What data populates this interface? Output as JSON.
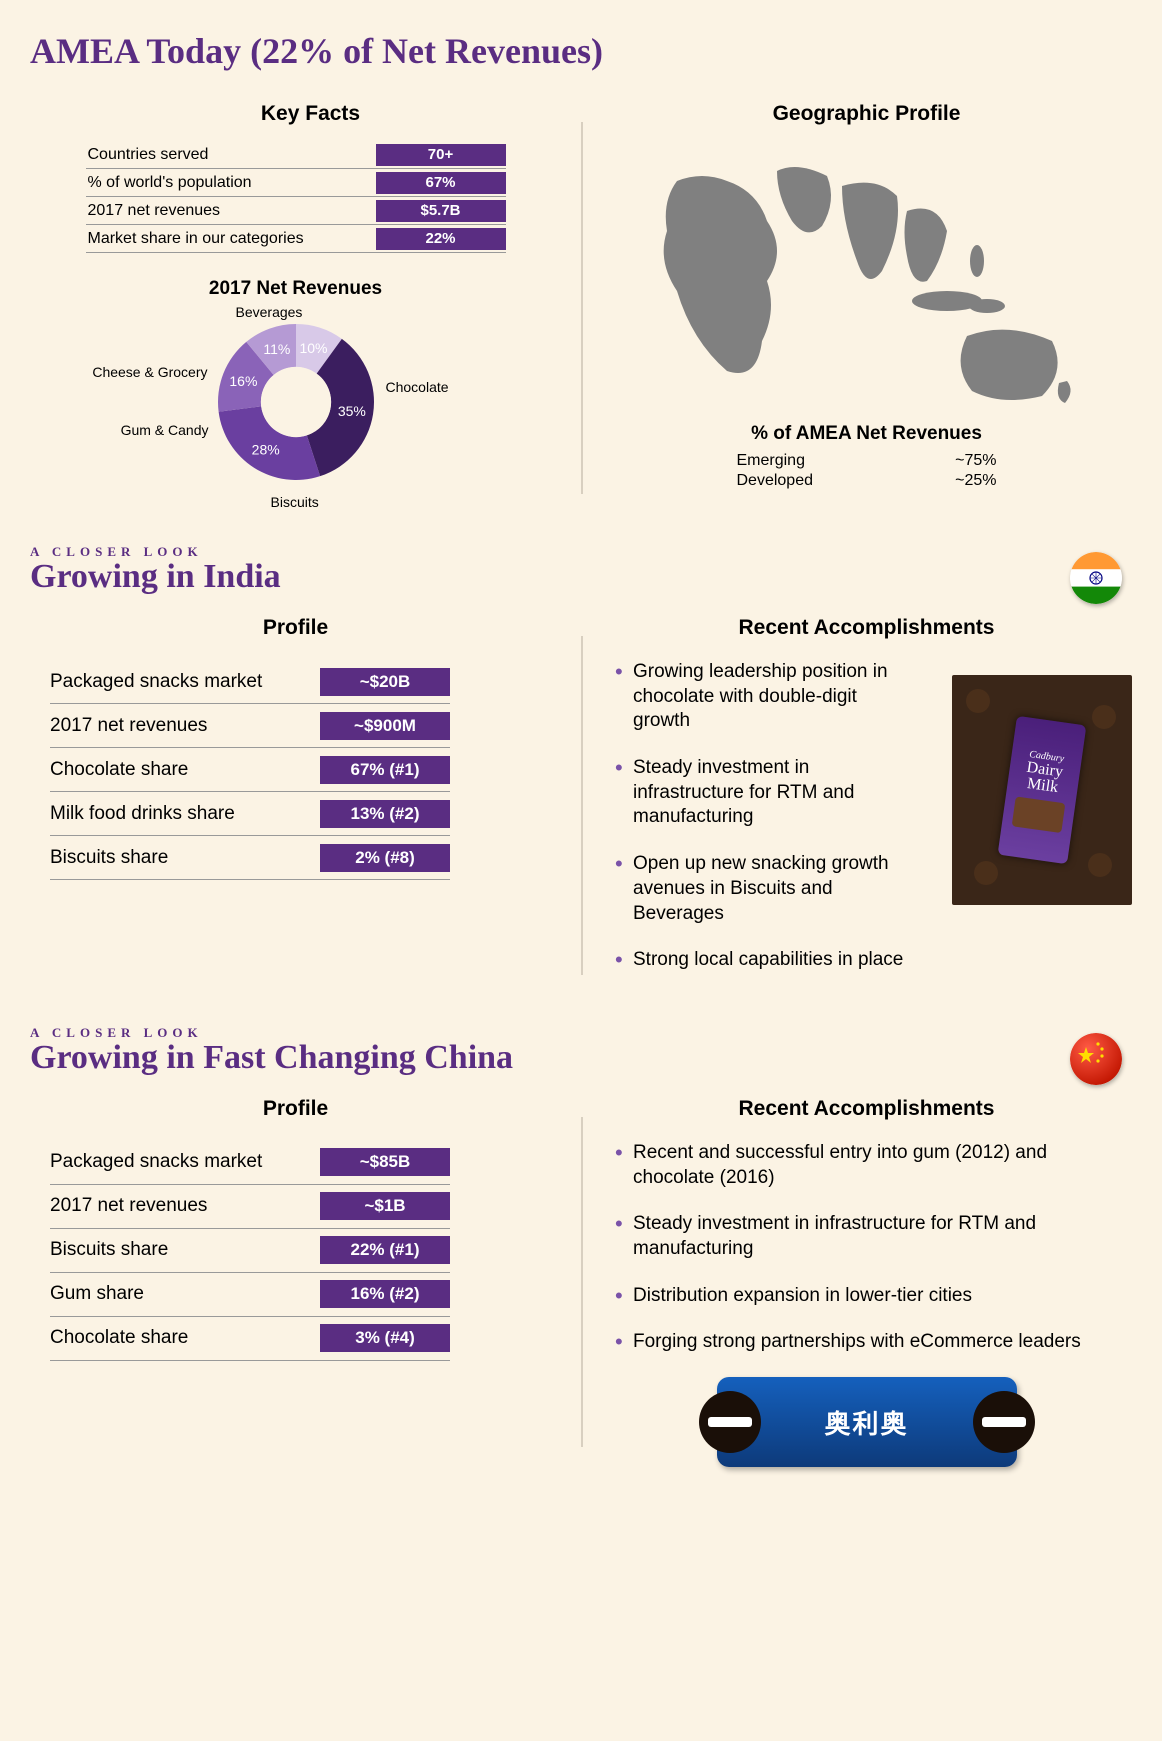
{
  "page_title": "AMEA Today (22% of Net Revenues)",
  "background_color": "#fbf3e4",
  "brand_purple": "#5a2d82",
  "key_facts": {
    "heading": "Key Facts",
    "rows": [
      {
        "label": "Countries served",
        "value": "70+"
      },
      {
        "label": "% of world's population",
        "value": "67%"
      },
      {
        "label": "2017 net revenues",
        "value": "$5.7B"
      },
      {
        "label": "Market share in our categories",
        "value": "22%"
      }
    ]
  },
  "donut": {
    "title": "2017 Net Revenues",
    "type": "donut",
    "inner_radius_ratio": 0.45,
    "slices": [
      {
        "label": "Chocolate",
        "pct": 35,
        "color": "#3b1e5f"
      },
      {
        "label": "Biscuits",
        "pct": 28,
        "color": "#6a3fa0"
      },
      {
        "label": "Gum & Candy",
        "pct": 16,
        "color": "#8a63b8"
      },
      {
        "label": "Cheese & Grocery",
        "pct": 11,
        "color": "#b59ad4"
      },
      {
        "label": "Beverages",
        "pct": 10,
        "color": "#d8c9e8"
      }
    ],
    "label_fontsize": 14,
    "pct_text_color": "#ffffff"
  },
  "geo": {
    "heading": "Geographic Profile",
    "map_fill": "#808080",
    "caption": "% of AMEA Net Revenues",
    "rows": [
      {
        "label": "Emerging",
        "value": "~75%"
      },
      {
        "label": "Developed",
        "value": "~25%"
      }
    ]
  },
  "india": {
    "eyebrow": "A CLOSER LOOK",
    "title": "Growing in India",
    "flag_colors": {
      "top": "#ff9933",
      "mid": "#ffffff",
      "bot": "#138808",
      "wheel": "#000080"
    },
    "profile": {
      "heading": "Profile",
      "rows": [
        {
          "label": "Packaged snacks market",
          "value": "~$20B"
        },
        {
          "label": "2017 net revenues",
          "value": "~$900M"
        },
        {
          "label": "Chocolate share",
          "value": "67% (#1)"
        },
        {
          "label": "Milk food drinks share",
          "value": "13% (#2)"
        },
        {
          "label": "Biscuits share",
          "value": "2% (#8)"
        }
      ]
    },
    "accomplishments": {
      "heading": "Recent Accomplishments",
      "items": [
        "Growing leadership position in chocolate with double-digit growth",
        "Steady investment in infrastructure for RTM and manufacturing",
        "Open up new snacking growth avenues in Biscuits and Beverages",
        "Strong local capabilities in place"
      ]
    },
    "product_image_alt": "Cadbury Dairy Milk chocolate",
    "product_text1": "Cadbury",
    "product_text2": "Dairy",
    "product_text3": "Milk"
  },
  "china": {
    "eyebrow": "A CLOSER LOOK",
    "title": "Growing in Fast Changing China",
    "flag_colors": {
      "bg": "#de2910",
      "star": "#ffde00"
    },
    "profile": {
      "heading": "Profile",
      "rows": [
        {
          "label": "Packaged snacks market",
          "value": "~$85B"
        },
        {
          "label": "2017 net revenues",
          "value": "~$1B"
        },
        {
          "label": "Biscuits share",
          "value": "22% (#1)"
        },
        {
          "label": "Gum share",
          "value": "16% (#2)"
        },
        {
          "label": "Chocolate share",
          "value": "3% (#4)"
        }
      ]
    },
    "accomplishments": {
      "heading": "Recent Accomplishments",
      "items": [
        "Recent and successful entry into gum (2012) and chocolate (2016)",
        "Steady investment in infrastructure for RTM and manufacturing",
        "Distribution expansion in lower-tier cities",
        "Forging strong partnerships with eCommerce leaders"
      ]
    },
    "product_image_alt": "Oreo package (Chinese)",
    "product_text": "奥利奥"
  }
}
